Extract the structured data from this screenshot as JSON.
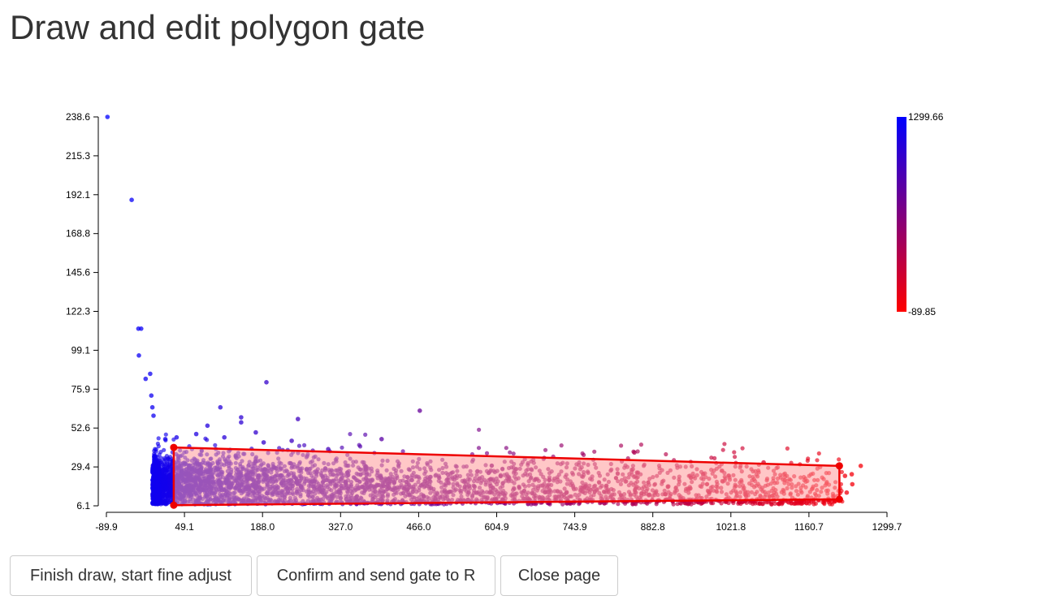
{
  "page": {
    "title": "Draw and edit polygon gate"
  },
  "buttons": {
    "finish": "Finish draw, start fine adjust",
    "confirm": "Confirm and send gate to R",
    "close": "Close page"
  },
  "colors": {
    "high": "#0000ff",
    "low": "#ff0000",
    "gate_stroke": "#ee0000",
    "gate_fill": "#ff9999",
    "axis": "#000000"
  },
  "chart_data": {
    "type": "scatter",
    "title": "",
    "xlabel": "",
    "ylabel": "",
    "xlim": [
      -89.9,
      1299.7
    ],
    "ylim": [
      6.1,
      238.6
    ],
    "x_ticks": [
      "-89.9",
      "49.1",
      "188.0",
      "327.0",
      "466.0",
      "604.9",
      "743.9",
      "882.8",
      "1021.8",
      "1160.7",
      "1299.7"
    ],
    "y_ticks": [
      "238.6",
      "215.3",
      "192.1",
      "168.8",
      "145.6",
      "122.3",
      "99.1",
      "75.9",
      "52.6",
      "29.4",
      "6.1"
    ],
    "colorbar": {
      "max_label": "1299.66",
      "min_label": "-89.85",
      "max": 1299.66,
      "min": -89.85,
      "high_color": "#0000ff",
      "low_color": "#ff0000"
    },
    "gate_polygon": [
      {
        "x": 30,
        "y": 41
      },
      {
        "x": 1215,
        "y": 30
      },
      {
        "x": 1215,
        "y": 10
      },
      {
        "x": 30,
        "y": 6.5
      }
    ],
    "outlier_points": [
      {
        "x": -88,
        "y": 238.6
      },
      {
        "x": -45,
        "y": 189
      },
      {
        "x": -33,
        "y": 112
      },
      {
        "x": -28,
        "y": 112
      },
      {
        "x": -32,
        "y": 96
      },
      {
        "x": -20,
        "y": 82
      },
      {
        "x": -12,
        "y": 85
      },
      {
        "x": 195,
        "y": 80
      },
      {
        "x": 113,
        "y": 65
      },
      {
        "x": 468,
        "y": 63
      },
      {
        "x": 150,
        "y": 59
      },
      {
        "x": 251,
        "y": 58
      },
      {
        "x": 90,
        "y": 54
      },
      {
        "x": 150,
        "y": 56
      },
      {
        "x": 176,
        "y": 50
      },
      {
        "x": 70,
        "y": 49
      },
      {
        "x": 35,
        "y": 47
      },
      {
        "x": 15,
        "y": 46
      },
      {
        "x": 400,
        "y": 46
      },
      {
        "x": 120,
        "y": 47
      },
      {
        "x": 240,
        "y": 45
      },
      {
        "x": 190,
        "y": 44
      },
      {
        "x": 305,
        "y": 40
      },
      {
        "x": 850,
        "y": 38
      },
      {
        "x": 1080,
        "y": 32
      },
      {
        "x": 1253,
        "y": 30
      },
      {
        "x": 1225,
        "y": 24
      },
      {
        "x": 1237,
        "y": 25
      },
      {
        "x": 1228,
        "y": 14
      },
      {
        "x": 1238,
        "y": 19
      },
      {
        "x": -10,
        "y": 72
      },
      {
        "x": -8,
        "y": 65
      },
      {
        "x": -6,
        "y": 60
      }
    ],
    "main_cloud": {
      "x_range": [
        -5,
        1220
      ],
      "y_center": [
        20,
        13
      ],
      "y_spread": [
        20,
        7
      ],
      "n_points": 4000
    }
  }
}
